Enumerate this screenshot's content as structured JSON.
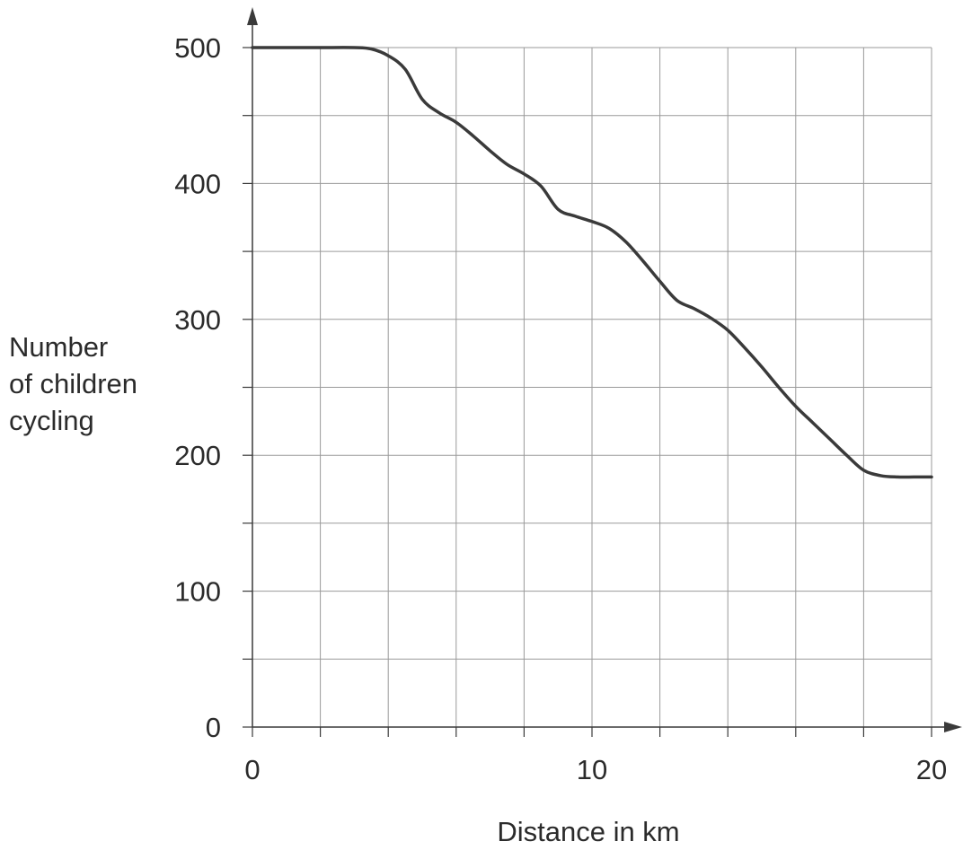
{
  "chart_data": {
    "type": "line",
    "title": "",
    "xlabel": "Distance in km",
    "ylabel_lines": [
      "Number",
      "of children",
      "cycling"
    ],
    "xlim": [
      0,
      20
    ],
    "ylim": [
      0,
      500
    ],
    "x_ticks": [
      0,
      10,
      20
    ],
    "y_ticks": [
      0,
      100,
      200,
      300,
      400,
      500
    ],
    "x_grid_step": 2,
    "y_grid_step": 50,
    "grid": true,
    "series": [
      {
        "x": [
          0,
          1,
          2,
          3,
          3.5,
          4,
          4.5,
          5,
          5.5,
          6,
          6.5,
          7,
          7.5,
          8,
          8.5,
          9,
          9.5,
          10,
          10.5,
          11,
          11.5,
          12,
          12.5,
          13,
          13.5,
          14,
          14.5,
          15,
          15.5,
          16,
          16.5,
          17,
          17.5,
          18,
          18.5,
          19,
          19.5,
          20
        ],
        "y": [
          500,
          500,
          500,
          500,
          499,
          494,
          484,
          462,
          452,
          445,
          435,
          424,
          414,
          407,
          398,
          381,
          376,
          372,
          367,
          357,
          343,
          328,
          314,
          308,
          301,
          292,
          279,
          265,
          250,
          236,
          224,
          212,
          200,
          189,
          185,
          184,
          184,
          184
        ]
      }
    ],
    "colors": {
      "line": "#3a3a3a",
      "grid": "#9a9a9a",
      "axis": "#3a3a3a",
      "text": "#2b2b2b"
    }
  }
}
